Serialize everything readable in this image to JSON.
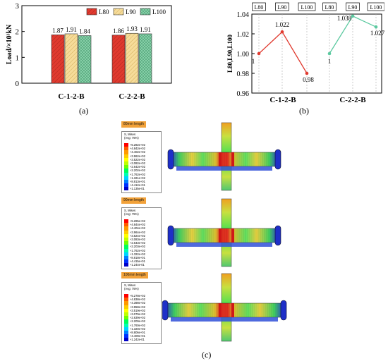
{
  "panels": {
    "a": "(a)",
    "b": "(b)",
    "c": "(c)"
  },
  "chart_data": [
    {
      "type": "bar",
      "ylabel": "Load/×10³kN",
      "ylim": [
        0,
        3
      ],
      "yticks": [
        "0",
        "1",
        "2",
        "3"
      ],
      "categories": [
        "C-1-2-B",
        "C-2-2-B"
      ],
      "series": [
        {
          "name": "L80",
          "values": [
            1.87,
            1.86
          ],
          "labels": [
            "1.87",
            "1.86"
          ],
          "color": "#e03a2f"
        },
        {
          "name": "L90",
          "values": [
            1.91,
            1.93
          ],
          "labels": [
            "1.91",
            "1.93"
          ],
          "color": "#f6dc9a"
        },
        {
          "name": "L100",
          "values": [
            1.84,
            1.91
          ],
          "labels": [
            "1.84",
            "1.91"
          ],
          "color": "#86cfa8"
        }
      ],
      "legend_position": "top-right"
    },
    {
      "type": "line",
      "ylabel": "L80,L90,L100",
      "ylim": [
        0.96,
        1.04
      ],
      "yticks": [
        "0.96",
        "0.98",
        "1.00",
        "1.02",
        "1.04"
      ],
      "x_headers": [
        "L80",
        "L90",
        "L100",
        "L80",
        "L90",
        "L100"
      ],
      "groups": [
        "C-1-2-B",
        "C-2-2-B"
      ],
      "series": [
        {
          "group": "C-1-2-B",
          "x": [
            "L80",
            "L90",
            "L100"
          ],
          "values": [
            1.0,
            1.022,
            0.98
          ],
          "labels": [
            "1",
            "1.022",
            "0.98"
          ],
          "color": "#e03a2f"
        },
        {
          "group": "C-2-2-B",
          "x": [
            "L80",
            "L90",
            "L100"
          ],
          "values": [
            1.0,
            1.038,
            1.027
          ],
          "labels": [
            "1",
            "1.038",
            "1.027"
          ],
          "color": "#5cc9a0"
        }
      ]
    }
  ],
  "fea": {
    "stress_title": "S, Mises",
    "avg_label": "(Avg: 75%)",
    "colors": [
      "#ff0000",
      "#ff5a00",
      "#ff9900",
      "#ffcc00",
      "#ffff00",
      "#bfff00",
      "#6fff00",
      "#00ff5a",
      "#00ffb0",
      "#00d4ff",
      "#0080ff",
      "#0030ff",
      "#0000c8"
    ],
    "models": [
      {
        "length_label": "80mm length",
        "legend": [
          "+5.282e+02",
          "+4.842e+02",
          "+4.402e+02",
          "+3.962e+02",
          "+3.522e+02",
          "+3.082e+02",
          "+2.642e+02",
          "+2.202e+02",
          "+1.762e+02",
          "+1.321e+02",
          "+8.813e+01",
          "+4.412e+01",
          "+1.135e-01"
        ]
      },
      {
        "length_label": "90mm length",
        "legend": [
          "+5.285e+02",
          "+4.844e+02",
          "+4.404e+02",
          "+3.964e+02",
          "+3.524e+02",
          "+3.083e+02",
          "+2.643e+02",
          "+2.203e+02",
          "+1.762e+02",
          "+1.322e+02",
          "+8.818e+01",
          "+4.415e+01",
          "+1.244e-01"
        ]
      },
      {
        "length_label": "100mm length",
        "legend": [
          "+5.278e+02",
          "+4.838e+02",
          "+4.398e+02",
          "+3.958e+02",
          "+3.519e+02",
          "+3.079e+02",
          "+2.639e+02",
          "+2.200e+02",
          "+1.760e+02",
          "+1.320e+02",
          "+8.806e+01",
          "+4.409e+01",
          "+1.242e-01"
        ]
      }
    ]
  }
}
